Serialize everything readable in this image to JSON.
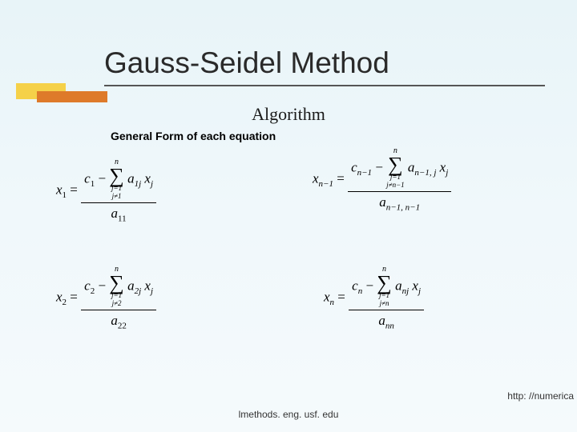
{
  "title": "Gauss-Seidel Method",
  "subtitle": "Algorithm",
  "subheading": "General Form of each equation",
  "equations": {
    "eq1": {
      "lhs_var": "x",
      "lhs_sub": "1",
      "c_var": "c",
      "c_sub": "1",
      "sum_top": "n",
      "sum_bot1": "j=1",
      "sum_bot2": "j≠1",
      "a_var": "a",
      "a_sub": "1j",
      "x_var": "x",
      "x_sub": "j",
      "den_var": "a",
      "den_sub": "11"
    },
    "eq2": {
      "lhs_var": "x",
      "lhs_sub": "2",
      "c_var": "c",
      "c_sub": "2",
      "sum_top": "n",
      "sum_bot1": "j=1",
      "sum_bot2": "j≠2",
      "a_var": "a",
      "a_sub": "2j",
      "x_var": "x",
      "x_sub": "j",
      "den_var": "a",
      "den_sub": "22"
    },
    "eq3": {
      "lhs_var": "x",
      "lhs_sub": "n−1",
      "c_var": "c",
      "c_sub": "n−1",
      "sum_top": "n",
      "sum_bot1": "j=1",
      "sum_bot2": "j≠n−1",
      "a_var": "a",
      "a_sub": "n−1, j",
      "x_var": "x",
      "x_sub": "j",
      "den_var": "a",
      "den_sub": "n−1, n−1"
    },
    "eq4": {
      "lhs_var": "x",
      "lhs_sub": "n",
      "c_var": "c",
      "c_sub": "n",
      "sum_top": "n",
      "sum_bot1": "j=1",
      "sum_bot2": "j≠n",
      "a_var": "a",
      "a_sub": "nj",
      "x_var": "x",
      "x_sub": "j",
      "den_var": "a",
      "den_sub": "nn"
    }
  },
  "footer_center": "lmethods. eng. usf. edu",
  "footer_right": "http: //numerica",
  "colors": {
    "bg_top": "#e8f4f8",
    "accent_yellow": "#f5d149",
    "accent_orange": "#de7a2a",
    "title": "#2a2a2a"
  }
}
